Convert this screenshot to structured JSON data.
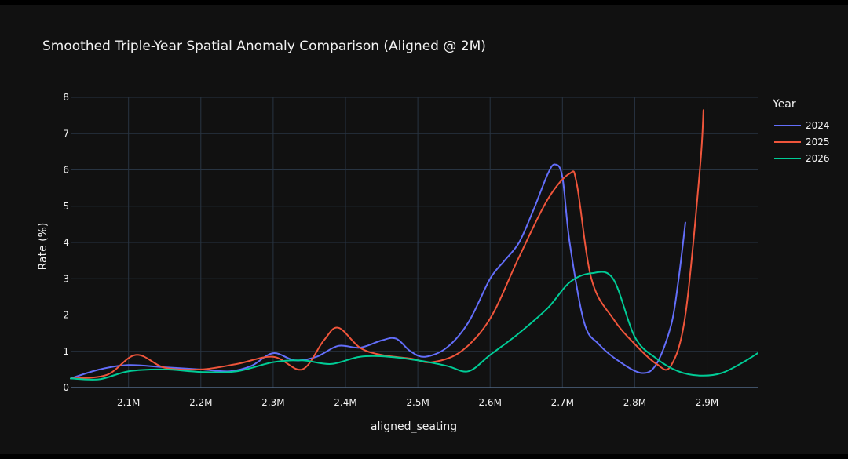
{
  "chart_data": {
    "type": "line",
    "title": "Smoothed Triple-Year Spatial Anomaly Comparison (Aligned @ 2M)",
    "xlabel": "aligned_seating",
    "ylabel": "Rate (%)",
    "xlim": [
      2020000,
      2970000
    ],
    "ylim": [
      0,
      8
    ],
    "x_ticks": [
      2100000,
      2200000,
      2300000,
      2400000,
      2500000,
      2600000,
      2700000,
      2800000,
      2900000
    ],
    "x_tick_labels": [
      "2.1M",
      "2.2M",
      "2.3M",
      "2.4M",
      "2.5M",
      "2.6M",
      "2.7M",
      "2.8M",
      "2.9M"
    ],
    "y_ticks": [
      0,
      1,
      2,
      3,
      4,
      5,
      6,
      7,
      8
    ],
    "y_tick_labels": [
      "0",
      "1",
      "2",
      "3",
      "4",
      "5",
      "6",
      "7",
      "8"
    ],
    "grid": true,
    "legend": {
      "title": "Year",
      "placement": "top-right"
    },
    "series": [
      {
        "name": "2024",
        "color": "#636efa",
        "x": [
          2020000,
          2060000,
          2100000,
          2150000,
          2200000,
          2240000,
          2270000,
          2300000,
          2330000,
          2360000,
          2390000,
          2420000,
          2450000,
          2470000,
          2490000,
          2510000,
          2540000,
          2570000,
          2600000,
          2620000,
          2640000,
          2660000,
          2680000,
          2690000,
          2700000,
          2710000,
          2730000,
          2750000,
          2780000,
          2810000,
          2830000,
          2850000,
          2860000,
          2870000
        ],
        "y": [
          0.25,
          0.5,
          0.62,
          0.56,
          0.5,
          0.45,
          0.6,
          0.95,
          0.75,
          0.85,
          1.15,
          1.1,
          1.3,
          1.35,
          1.0,
          0.85,
          1.1,
          1.8,
          3.0,
          3.5,
          4.0,
          4.9,
          5.9,
          6.15,
          5.8,
          4.0,
          1.8,
          1.2,
          0.7,
          0.4,
          0.65,
          1.7,
          2.9,
          4.55
        ]
      },
      {
        "name": "2025",
        "color": "#ef553b",
        "x": [
          2020000,
          2070000,
          2110000,
          2150000,
          2200000,
          2250000,
          2300000,
          2340000,
          2370000,
          2390000,
          2420000,
          2450000,
          2490000,
          2520000,
          2560000,
          2600000,
          2640000,
          2680000,
          2710000,
          2720000,
          2740000,
          2770000,
          2800000,
          2830000,
          2850000,
          2870000,
          2890000,
          2895000
        ],
        "y": [
          0.25,
          0.35,
          0.9,
          0.55,
          0.5,
          0.65,
          0.85,
          0.5,
          1.3,
          1.65,
          1.1,
          0.9,
          0.8,
          0.7,
          1.0,
          1.9,
          3.6,
          5.2,
          5.9,
          5.6,
          3.0,
          1.9,
          1.2,
          0.65,
          0.6,
          2.0,
          6.0,
          7.65
        ]
      },
      {
        "name": "2026",
        "color": "#00cc96",
        "x": [
          2020000,
          2060000,
          2100000,
          2150000,
          2200000,
          2250000,
          2300000,
          2340000,
          2380000,
          2420000,
          2460000,
          2500000,
          2540000,
          2570000,
          2600000,
          2640000,
          2680000,
          2710000,
          2740000,
          2770000,
          2800000,
          2830000,
          2860000,
          2890000,
          2920000,
          2950000,
          2970000
        ],
        "y": [
          0.25,
          0.23,
          0.45,
          0.5,
          0.43,
          0.45,
          0.7,
          0.75,
          0.65,
          0.85,
          0.85,
          0.75,
          0.6,
          0.45,
          0.9,
          1.5,
          2.2,
          2.9,
          3.15,
          3.0,
          1.4,
          0.8,
          0.45,
          0.33,
          0.4,
          0.7,
          0.95
        ]
      }
    ]
  }
}
